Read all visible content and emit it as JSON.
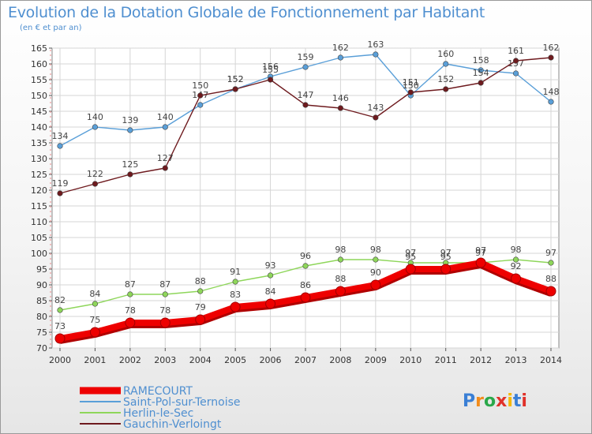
{
  "chart_data": {
    "type": "line",
    "title": "Evolution de la Dotation Globale de Fonctionnement par Habitant",
    "subtitle": "(en € et par an)",
    "xlabel": "",
    "ylabel": "",
    "ylim": [
      70,
      165
    ],
    "categories": [
      "2000",
      "2001",
      "2002",
      "2003",
      "2004",
      "2005",
      "2006",
      "2007",
      "2008",
      "2009",
      "2010",
      "2011",
      "2012",
      "2013",
      "2014"
    ],
    "y_ticks": [
      "70",
      "75",
      "80",
      "85",
      "90",
      "95",
      "100",
      "105",
      "110",
      "115",
      "120",
      "125",
      "130",
      "135",
      "140",
      "145",
      "150",
      "155",
      "160",
      "165"
    ],
    "series": [
      {
        "name": "RAMECOURT",
        "color": "#ee0000",
        "values": [
          73,
          75,
          78,
          78,
          79,
          83,
          84,
          86,
          88,
          90,
          95,
          95,
          97,
          92,
          88
        ]
      },
      {
        "name": "Saint-Pol-sur-Ternoise",
        "color": "#5a9fd8",
        "values": [
          134,
          140,
          139,
          140,
          147,
          152,
          156,
          159,
          162,
          163,
          150,
          160,
          158,
          157,
          148
        ]
      },
      {
        "name": "Herlin-le-Sec",
        "color": "#8ed65a",
        "values": [
          82,
          84,
          87,
          87,
          88,
          91,
          93,
          96,
          98,
          98,
          97,
          97,
          97,
          98,
          97
        ]
      },
      {
        "name": "Gauchin-Verloingt",
        "color": "#6e1a1e",
        "values": [
          119,
          122,
          125,
          127,
          150,
          152,
          155,
          147,
          146,
          143,
          151,
          152,
          154,
          161,
          162
        ]
      }
    ],
    "grid": true,
    "legend_position": "bottom-left"
  },
  "logo": {
    "text": "Proxiti",
    "colors": [
      "#3a7fd5",
      "#f28c1c",
      "#2aa84a",
      "#e0312a",
      "#f6b800",
      "#3a7fd5",
      "#e0312a"
    ]
  }
}
